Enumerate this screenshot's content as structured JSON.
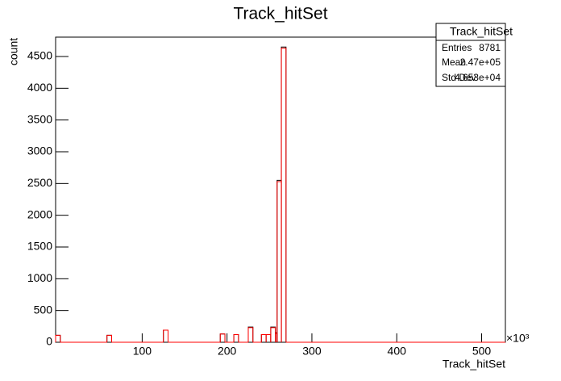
{
  "chart_data": {
    "type": "histogram",
    "title": "Track_hitSet",
    "x_label": "Track_hitSet",
    "y_label": "count",
    "x_multiplier": "×10³",
    "bins": [
      -2,
      3.5,
      58.5,
      64,
      125,
      130.5,
      192,
      197.5,
      208,
      213.5,
      225,
      230.5,
      240.5,
      246,
      251.5,
      257,
      259,
      264,
      269.5,
      528
    ],
    "series": [
      {
        "color": "#000000",
        "values": [
          110,
          0,
          110,
          0,
          190,
          0,
          130,
          0,
          120,
          0,
          240,
          0,
          120,
          120,
          240,
          150,
          2550,
          4650,
          0
        ]
      },
      {
        "color": "#ff0000",
        "values": [
          110,
          0,
          110,
          0,
          190,
          0,
          130,
          0,
          120,
          0,
          230,
          0,
          120,
          120,
          230,
          140,
          2530,
          4630,
          0
        ]
      }
    ],
    "xlim": [
      -2,
      528
    ],
    "xticks": [
      100,
      200,
      300,
      400,
      500
    ],
    "ylim": [
      0,
      4805
    ],
    "yticks": [
      0,
      500,
      1000,
      1500,
      2000,
      2500,
      3000,
      3500,
      4000,
      4500
    ],
    "stats": {
      "title": "Track_hitSet",
      "rows": [
        [
          "Entries",
          "8781"
        ],
        [
          "Mean",
          "2.47e+05"
        ],
        [
          "Std Dev",
          "4.653e+04"
        ]
      ]
    }
  }
}
